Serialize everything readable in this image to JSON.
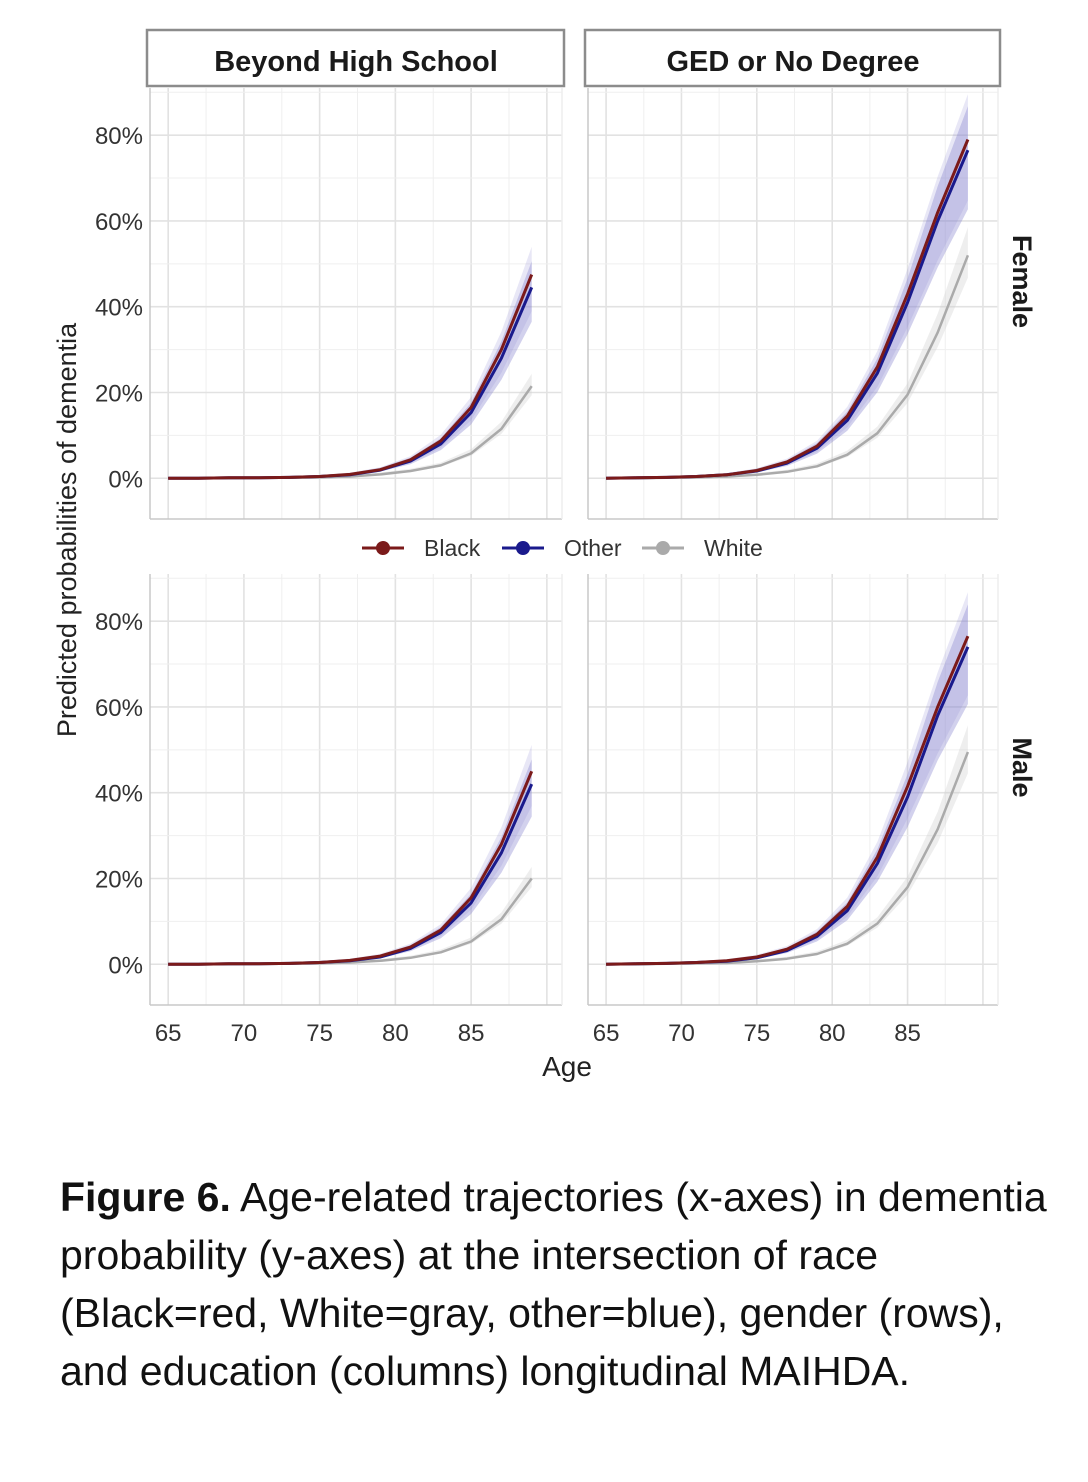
{
  "chart_data": {
    "type": "line",
    "columns": [
      "Beyond High School",
      "GED or No Degree"
    ],
    "rows": [
      "Female",
      "Male"
    ],
    "xlabel": "Age",
    "ylabel": "Predicted probabilities of dementia",
    "x_ticks": [
      "65",
      "70",
      "75",
      "80",
      "85"
    ],
    "y_ticks": [
      "0%",
      "20%",
      "40%",
      "60%",
      "80%"
    ],
    "xlim": [
      63.8,
      91
    ],
    "ylim": [
      -9.5,
      91
    ],
    "grid": true,
    "legend": {
      "position": "middle",
      "entries": [
        "Black",
        "Other",
        "White"
      ]
    },
    "colors": {
      "Black": "#7b1a1a",
      "Other": "#1a1a8c",
      "White": "#aaaaaa",
      "band_color": "#8a86d0",
      "white_band_color": "#cfcfcf"
    },
    "x": [
      65,
      67,
      69,
      71,
      73,
      75,
      77,
      79,
      81,
      83,
      85,
      87,
      89
    ],
    "panels": [
      {
        "column": "Beyond High School",
        "row": "Female",
        "series": [
          {
            "name": "Black",
            "values": [
              0,
              0,
              0.1,
              0.1,
              0.2,
              0.4,
              0.9,
              2,
              4.3,
              8.7,
              16.5,
              30,
              47.5
            ]
          },
          {
            "name": "Other",
            "values": [
              0,
              0,
              0.1,
              0.1,
              0.2,
              0.4,
              0.8,
              1.9,
              4,
              8,
              15.3,
              28,
              44.5
            ]
          },
          {
            "name": "White",
            "values": [
              0,
              0,
              0,
              0.1,
              0.1,
              0.2,
              0.4,
              0.9,
              1.7,
              3,
              5.8,
              11.5,
              21.5
            ]
          }
        ]
      },
      {
        "column": "GED or No Degree",
        "row": "Female",
        "series": [
          {
            "name": "Black",
            "values": [
              0,
              0.1,
              0.2,
              0.4,
              0.8,
              1.8,
              3.8,
              7.5,
              14.5,
              26,
              43,
              62,
              79
            ]
          },
          {
            "name": "Other",
            "values": [
              0,
              0.1,
              0.2,
              0.4,
              0.8,
              1.7,
              3.5,
              7,
              13.5,
              24.5,
              41,
              60,
              76.5
            ]
          },
          {
            "name": "White",
            "values": [
              0,
              0,
              0.1,
              0.2,
              0.4,
              0.8,
              1.5,
              2.8,
              5.5,
              10.5,
              19.5,
              34,
              52
            ]
          }
        ]
      },
      {
        "column": "Beyond High School",
        "row": "Male",
        "series": [
          {
            "name": "Black",
            "values": [
              0,
              0,
              0.1,
              0.1,
              0.2,
              0.4,
              0.9,
              1.9,
              4,
              8,
              15.5,
              28,
              45
            ]
          },
          {
            "name": "Other",
            "values": [
              0,
              0,
              0.1,
              0.1,
              0.2,
              0.4,
              0.8,
              1.7,
              3.7,
              7.4,
              14.3,
              26,
              42
            ]
          },
          {
            "name": "White",
            "values": [
              0,
              0,
              0,
              0.1,
              0.1,
              0.2,
              0.4,
              0.8,
              1.5,
              2.8,
              5.3,
              10.5,
              20
            ]
          }
        ]
      },
      {
        "column": "GED or No Degree",
        "row": "Male",
        "series": [
          {
            "name": "Black",
            "values": [
              0,
              0.1,
              0.2,
              0.4,
              0.8,
              1.7,
              3.5,
              7,
              13.5,
              25,
              41.5,
              60,
              76.5
            ]
          },
          {
            "name": "Other",
            "values": [
              0,
              0.1,
              0.2,
              0.4,
              0.7,
              1.5,
              3.2,
              6.5,
              12.5,
              23.5,
              39,
              58,
              74
            ]
          },
          {
            "name": "White",
            "values": [
              0,
              0,
              0.1,
              0.2,
              0.3,
              0.7,
              1.3,
              2.4,
              4.8,
              9.5,
              18,
              31.5,
              49.5
            ]
          }
        ]
      }
    ]
  },
  "caption": {
    "label": "Figure 6.",
    "text": " Age-related trajectories (x-axes) in dementia probability (y-axes) at the intersection of race (Black=red, White=gray, other=blue), gender (rows), and education (columns) longitudinal MAIHDA."
  }
}
